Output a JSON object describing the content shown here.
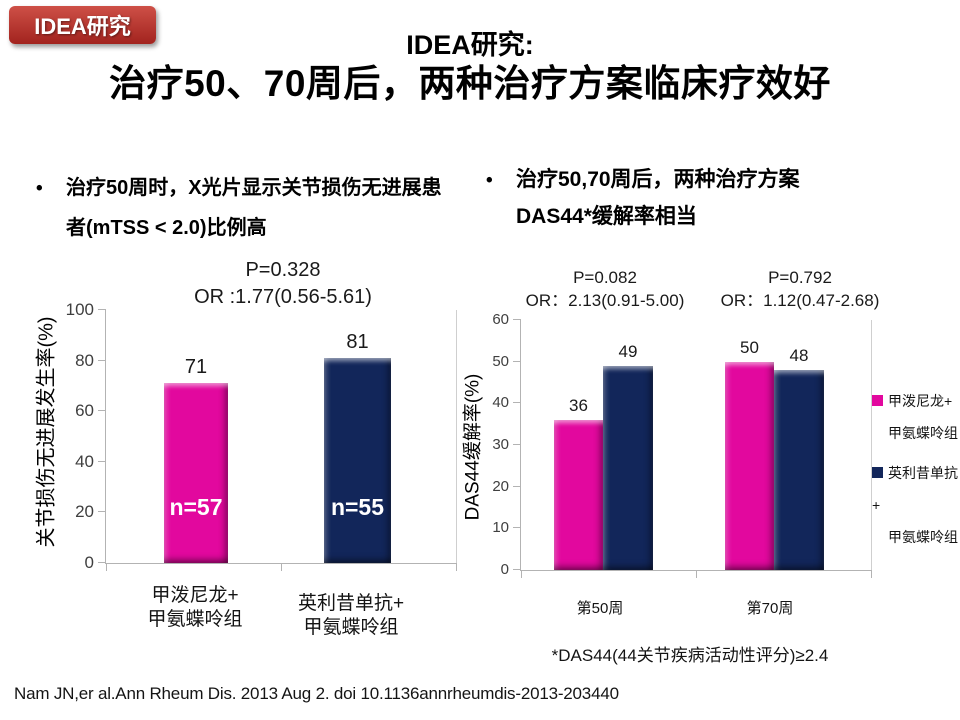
{
  "badge": {
    "label": "IDEA研究",
    "color_top": "#CE5047",
    "color_bottom": "#A2231E"
  },
  "title": {
    "line1": "IDEA研究:",
    "line2": "治疗50、70周后，两种治疗方案临床疗效好"
  },
  "bullets": {
    "marker": "•",
    "left": "治疗50周时，X光片显示关节损伤无进展患者(mTSS < 2.0)比例高",
    "right": "治疗50,70周后，两种治疗方案DAS44*缓解率相当"
  },
  "chart_data": [
    {
      "type": "bar",
      "stats": [
        "P=0.328",
        "OR :1.77(0.56-5.61)"
      ],
      "ylabel": "关节损伤无进展发生率(%)",
      "ylim": [
        0,
        100
      ],
      "yticks": [
        0,
        20,
        40,
        60,
        80,
        100
      ],
      "categories": [
        [
          "甲泼尼龙+",
          "甲氨蝶呤组"
        ],
        [
          "英利昔单抗+",
          "甲氨蝶呤组"
        ]
      ],
      "values": [
        71,
        81
      ],
      "bar_labels": [
        "71",
        "81"
      ],
      "inner_labels": [
        "n=57",
        "n=55"
      ],
      "bar_colors": [
        "#E2089E",
        "#12265A"
      ],
      "grid": false,
      "legend_position": "none"
    },
    {
      "type": "bar",
      "stats_groups": [
        [
          "P=0.082",
          "OR：2.13(0.91-5.00)"
        ],
        [
          "P=0.792",
          "OR：1.12(0.47-2.68)"
        ]
      ],
      "ylabel": "DAS44缓解率(%)",
      "ylim": [
        0,
        60
      ],
      "yticks": [
        0,
        10,
        20,
        30,
        40,
        50,
        60
      ],
      "categories": [
        "第50周",
        "第70周"
      ],
      "series": [
        {
          "name": "甲泼尼龙+甲氨蝶呤组",
          "color": "#E2089E",
          "values": [
            36,
            50
          ]
        },
        {
          "name": "英利昔单抗+甲氨蝶呤组",
          "color": "#12265A",
          "values": [
            49,
            48
          ]
        }
      ],
      "legend": [
        {
          "lines": [
            "甲泼尼龙+",
            "甲氨蝶呤组"
          ],
          "color": "#E2089E"
        },
        {
          "lines": [
            "英利昔单抗+",
            "甲氨蝶呤组"
          ],
          "color": "#12265A"
        }
      ],
      "footnote": "*DAS44(44关节疾病活动性评分)≥2.4",
      "grid": false,
      "legend_position": "right"
    }
  ],
  "footer": {
    "citation": "Nam JN,er al.Ann Rheum Dis. 2013 Aug 2. doi 10.1136annrheumdis-2013-203440"
  }
}
